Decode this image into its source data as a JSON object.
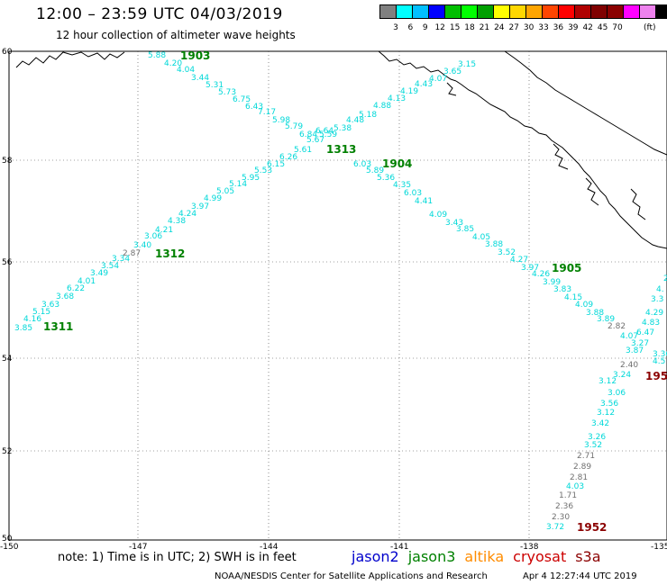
{
  "header": {
    "title": "12:00 – 23:59 UTC 04/03/2019",
    "subtitle": "12 hour collection of altimeter wave heights"
  },
  "colorbar": {
    "unit": "(ft)",
    "colors": [
      "#808080",
      "#00ffff",
      "#00bfff",
      "#0000ff",
      "#00bf00",
      "#00ff00",
      "#00a000",
      "#ffff00",
      "#ffd700",
      "#ffa500",
      "#ff4500",
      "#ff0000",
      "#b00000",
      "#800000",
      "#8b0000",
      "#ff00ff",
      "#ee82ee",
      "#000000"
    ],
    "ticks": [
      "3",
      "6",
      "9",
      "12",
      "15",
      "18",
      "21",
      "24",
      "27",
      "30",
      "33",
      "36",
      "39",
      "42",
      "45",
      "70"
    ]
  },
  "axes": {
    "lat_labels": [
      "60",
      "58",
      "56",
      "54",
      "52",
      "50"
    ],
    "lon_labels": [
      "-150",
      "-147",
      "-144",
      "-141",
      "-138",
      "-135"
    ]
  },
  "tracks": {
    "cyan_color": "#00d8d8",
    "gray_color": "#707070",
    "labels_color": "#008000",
    "dark_labels_color": "#8b0000"
  },
  "track_points": [
    {
      "v": "3.85",
      "c": "c"
    },
    {
      "v": "4.16",
      "c": "c"
    },
    {
      "v": "5.15",
      "c": "c"
    },
    {
      "v": "3.63",
      "c": "c"
    },
    {
      "v": "3.68",
      "c": "c"
    },
    {
      "v": "6.22",
      "c": "c"
    },
    {
      "v": "4.01",
      "c": "c"
    },
    {
      "v": "3.49",
      "c": "c"
    },
    {
      "v": "3.54",
      "c": "c"
    },
    {
      "v": "3.34",
      "c": "c"
    },
    {
      "v": "2.87",
      "c": "g"
    },
    {
      "v": "3.40",
      "c": "c"
    },
    {
      "v": "3.06",
      "c": "c"
    },
    {
      "v": "4.21",
      "c": "c"
    },
    {
      "v": "4.38",
      "c": "c"
    },
    {
      "v": "4.24",
      "c": "c"
    },
    {
      "v": "3.97",
      "c": "c"
    },
    {
      "v": "4.99",
      "c": "c"
    },
    {
      "v": "5.05",
      "c": "c"
    },
    {
      "v": "5.14",
      "c": "c"
    },
    {
      "v": "5.95",
      "c": "c"
    },
    {
      "v": "5.53",
      "c": "c"
    },
    {
      "v": "6.15",
      "c": "c"
    },
    {
      "v": "6.26",
      "c": "c"
    },
    {
      "v": "5.61",
      "c": "c"
    },
    {
      "v": "5.67",
      "c": "c"
    },
    {
      "v": "6.64",
      "c": "c"
    },
    {
      "v": "6.03",
      "c": "c"
    },
    {
      "v": "5.89",
      "c": "c"
    },
    {
      "v": "5.36",
      "c": "c"
    },
    {
      "v": "4.35",
      "c": "c"
    },
    {
      "v": "6.03",
      "c": "c"
    },
    {
      "v": "4.41",
      "c": "c"
    },
    {
      "v": "4.09",
      "c": "c"
    },
    {
      "v": "3.43",
      "c": "c"
    },
    {
      "v": "3.85",
      "c": "c"
    },
    {
      "v": "4.05",
      "c": "c"
    },
    {
      "v": "3.88",
      "c": "c"
    },
    {
      "v": "3.52",
      "c": "c"
    },
    {
      "v": "4.27",
      "c": "c"
    },
    {
      "v": "3.97",
      "c": "c"
    },
    {
      "v": "4.26",
      "c": "c"
    },
    {
      "v": "3.99",
      "c": "c"
    },
    {
      "v": "3.83",
      "c": "c"
    },
    {
      "v": "4.15",
      "c": "c"
    },
    {
      "v": "4.09",
      "c": "c"
    },
    {
      "v": "3.88",
      "c": "c"
    },
    {
      "v": "3.89",
      "c": "c"
    },
    {
      "v": "2.82",
      "c": "g"
    },
    {
      "v": "4.07",
      "c": "c"
    },
    {
      "v": "3.27",
      "c": "c"
    },
    {
      "v": "3.87",
      "c": "c"
    },
    {
      "v": "2.40",
      "c": "g"
    },
    {
      "v": "3.24",
      "c": "c"
    },
    {
      "v": "3.12",
      "c": "c"
    },
    {
      "v": "3.06",
      "c": "c"
    },
    {
      "v": "3.56",
      "c": "c"
    },
    {
      "v": "3.12",
      "c": "c"
    },
    {
      "v": "3.42",
      "c": "c"
    },
    {
      "v": "3.26",
      "c": "c"
    },
    {
      "v": "3.52",
      "c": "c"
    },
    {
      "v": "2.71",
      "c": "g"
    },
    {
      "v": "2.89",
      "c": "g"
    },
    {
      "v": "2.81",
      "c": "g"
    },
    {
      "v": "4.03",
      "c": "c"
    },
    {
      "v": "1.71",
      "c": "g"
    },
    {
      "v": "2.36",
      "c": "g"
    },
    {
      "v": "2.30",
      "c": "g"
    },
    {
      "v": "3.72",
      "c": "c"
    },
    {
      "v": "5.88",
      "c": "c"
    },
    {
      "v": "4.20",
      "c": "c"
    },
    {
      "v": "4.04",
      "c": "c"
    },
    {
      "v": "3.44",
      "c": "c"
    },
    {
      "v": "5.31",
      "c": "c"
    },
    {
      "v": "5.73",
      "c": "c"
    },
    {
      "v": "6.75",
      "c": "c"
    },
    {
      "v": "6.43",
      "c": "c"
    },
    {
      "v": "7.17",
      "c": "c"
    },
    {
      "v": "5.98",
      "c": "c"
    },
    {
      "v": "5.79",
      "c": "c"
    },
    {
      "v": "6.84",
      "c": "c"
    },
    {
      "v": "5.59",
      "c": "c"
    },
    {
      "v": "5.38",
      "c": "c"
    },
    {
      "v": "4.48",
      "c": "c"
    },
    {
      "v": "5.18",
      "c": "c"
    },
    {
      "v": "4.88",
      "c": "c"
    },
    {
      "v": "4.13",
      "c": "c"
    },
    {
      "v": "4.19",
      "c": "c"
    },
    {
      "v": "4.43",
      "c": "c"
    },
    {
      "v": "4.07",
      "c": "c"
    },
    {
      "v": "3.65",
      "c": "c"
    },
    {
      "v": "3.15",
      "c": "c"
    },
    {
      "v": "4.83",
      "c": "c"
    },
    {
      "v": "6.47",
      "c": "c"
    },
    {
      "v": "4.29",
      "c": "c"
    },
    {
      "v": "3.36",
      "c": "c"
    },
    {
      "v": "4.5",
      "c": "c"
    },
    {
      "v": "3.3",
      "c": "c"
    },
    {
      "v": "4.",
      "c": "c"
    },
    {
      "v": "2.",
      "c": "c"
    }
  ],
  "time_labels": [
    {
      "t": "1311",
      "c": "green"
    },
    {
      "t": "1312",
      "c": "green"
    },
    {
      "t": "1313",
      "c": "green"
    },
    {
      "t": "1903",
      "c": "green"
    },
    {
      "t": "1904",
      "c": "green"
    },
    {
      "t": "1905",
      "c": "green"
    },
    {
      "t": "1952",
      "c": "red"
    },
    {
      "t": "195",
      "c": "red"
    }
  ],
  "footer": {
    "note": "note: 1) Time is in UTC; 2) SWH is in feet",
    "satellites": [
      {
        "name": "jason2",
        "color": "#0000cc"
      },
      {
        "name": "jason3",
        "color": "#008000"
      },
      {
        "name": "altika",
        "color": "#ff8c00"
      },
      {
        "name": "cryosat",
        "color": "#cc0000"
      },
      {
        "name": "s3a",
        "color": "#8b0000"
      }
    ],
    "credit": "NOAA/NESDIS Center for Satellite Applications and Research",
    "timestamp": "Apr  4 12:27:44 UTC 2019"
  }
}
